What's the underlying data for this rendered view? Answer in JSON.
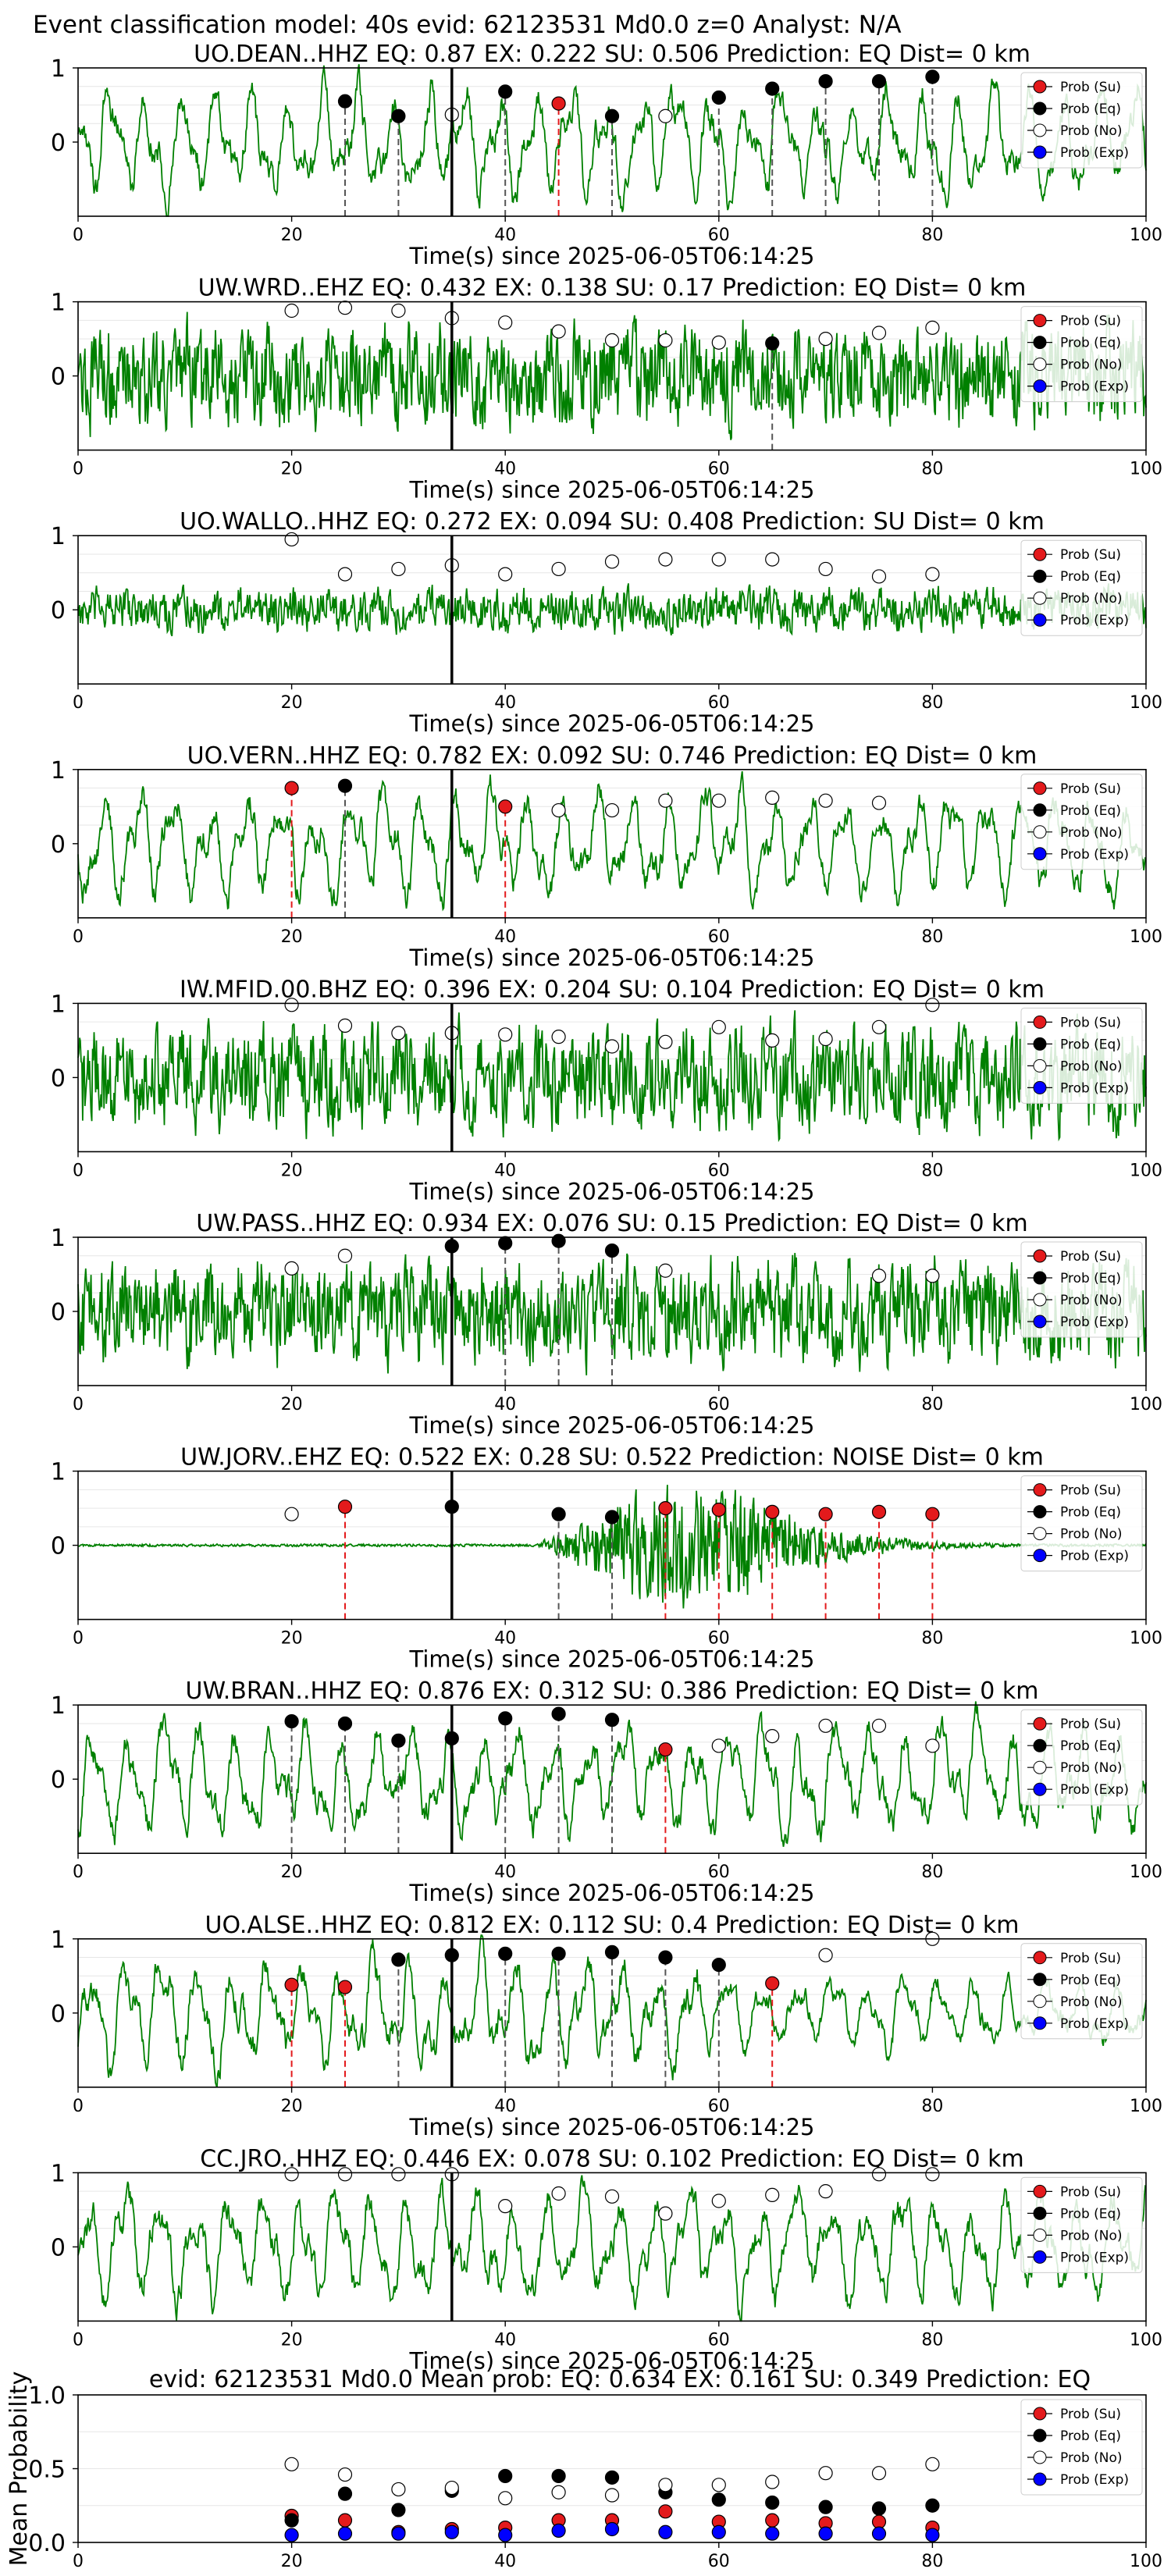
{
  "figure": {
    "title": "Event classification model: 40s evid: 62123531 Md0.0 z=0 Analyst: N/A",
    "xlabel": "Time(s) since 2025-06-05T06:14:25",
    "xlim": [
      0,
      100
    ],
    "xticks": [
      0,
      20,
      40,
      60,
      80,
      100
    ],
    "legend": [
      "Prob (Su)",
      "Prob (Eq)",
      "Prob (No)",
      "Prob (Exp)"
    ],
    "colors": {
      "su": "#e31a1c",
      "eq": "#000000",
      "no": "#ffffff",
      "exp": "#0000ff",
      "waveform": "#008000",
      "pick": "#000000"
    }
  },
  "chart_data": [
    {
      "type": "line",
      "title": "UO.DEAN..HHZ   EQ: 0.87   EX: 0.222   SU: 0.506   Prediction: EQ    Dist= 0 km",
      "ylim": [
        -1,
        1
      ],
      "yticks": [
        0,
        1
      ],
      "pick": 35,
      "style": "smooth",
      "envelope": "flat",
      "points": [
        [
          25,
          0.55,
          "eq"
        ],
        [
          30,
          0.35,
          "eq"
        ],
        [
          35,
          0.37,
          "no"
        ],
        [
          40,
          0.68,
          "eq"
        ],
        [
          45,
          0.52,
          "su"
        ],
        [
          50,
          0.35,
          "eq"
        ],
        [
          55,
          0.35,
          "no"
        ],
        [
          60,
          0.6,
          "eq"
        ],
        [
          65,
          0.72,
          "eq"
        ],
        [
          70,
          0.82,
          "eq"
        ],
        [
          75,
          0.82,
          "eq"
        ],
        [
          80,
          0.88,
          "eq"
        ]
      ]
    },
    {
      "type": "line",
      "title": "UW.WRD..EHZ   EQ: 0.432   EX: 0.138   SU: 0.17   Prediction: EQ    Dist= 0 km",
      "ylim": [
        -1,
        1
      ],
      "yticks": [
        0,
        1
      ],
      "pick": 35,
      "style": "noisy",
      "envelope": "flat",
      "points": [
        [
          20,
          0.88,
          "no"
        ],
        [
          25,
          0.92,
          "no"
        ],
        [
          30,
          0.88,
          "no"
        ],
        [
          35,
          0.78,
          "no"
        ],
        [
          40,
          0.72,
          "no"
        ],
        [
          45,
          0.6,
          "no"
        ],
        [
          50,
          0.48,
          "no"
        ],
        [
          55,
          0.48,
          "no"
        ],
        [
          60,
          0.45,
          "no"
        ],
        [
          65,
          0.44,
          "eq"
        ],
        [
          70,
          0.5,
          "no"
        ],
        [
          75,
          0.58,
          "no"
        ],
        [
          80,
          0.65,
          "no"
        ]
      ]
    },
    {
      "type": "line",
      "title": "UO.WALLO..HHZ   EQ: 0.272   EX: 0.094   SU: 0.408   Prediction: SU    Dist= 0 km",
      "ylim": [
        -1,
        1
      ],
      "yticks": [
        0,
        1
      ],
      "pick": 35,
      "style": "noisy",
      "envelope": "low",
      "points": [
        [
          20,
          0.95,
          "no"
        ],
        [
          25,
          0.48,
          "no"
        ],
        [
          30,
          0.55,
          "no"
        ],
        [
          35,
          0.6,
          "no"
        ],
        [
          40,
          0.48,
          "no"
        ],
        [
          45,
          0.55,
          "no"
        ],
        [
          50,
          0.65,
          "no"
        ],
        [
          55,
          0.68,
          "no"
        ],
        [
          60,
          0.68,
          "no"
        ],
        [
          65,
          0.68,
          "no"
        ],
        [
          70,
          0.55,
          "no"
        ],
        [
          75,
          0.45,
          "no"
        ],
        [
          80,
          0.48,
          "no"
        ]
      ]
    },
    {
      "type": "line",
      "title": "UO.VERN..HHZ   EQ: 0.782   EX: 0.092   SU: 0.746   Prediction: EQ    Dist= 0 km",
      "ylim": [
        -1,
        1
      ],
      "yticks": [
        0,
        1
      ],
      "pick": 35,
      "style": "smooth",
      "envelope": "flat",
      "points": [
        [
          20,
          0.75,
          "su"
        ],
        [
          25,
          0.78,
          "eq"
        ],
        [
          40,
          0.5,
          "su"
        ],
        [
          45,
          0.45,
          "no"
        ],
        [
          50,
          0.45,
          "no"
        ],
        [
          55,
          0.58,
          "no"
        ],
        [
          60,
          0.58,
          "no"
        ],
        [
          65,
          0.62,
          "no"
        ],
        [
          70,
          0.58,
          "no"
        ],
        [
          75,
          0.55,
          "no"
        ]
      ]
    },
    {
      "type": "line",
      "title": "IW.MFID.00.BHZ   EQ: 0.396   EX: 0.204   SU: 0.104   Prediction: EQ    Dist= 0 km",
      "ylim": [
        -1,
        1
      ],
      "yticks": [
        0,
        1
      ],
      "pick": 35,
      "style": "noisy",
      "envelope": "flat",
      "points": [
        [
          20,
          0.98,
          "no"
        ],
        [
          25,
          0.7,
          "no"
        ],
        [
          30,
          0.6,
          "no"
        ],
        [
          35,
          0.6,
          "no"
        ],
        [
          40,
          0.58,
          "no"
        ],
        [
          45,
          0.55,
          "no"
        ],
        [
          50,
          0.42,
          "no"
        ],
        [
          55,
          0.48,
          "no"
        ],
        [
          60,
          0.68,
          "no"
        ],
        [
          65,
          0.5,
          "no"
        ],
        [
          70,
          0.52,
          "no"
        ],
        [
          75,
          0.68,
          "no"
        ],
        [
          80,
          0.98,
          "no"
        ]
      ]
    },
    {
      "type": "line",
      "title": "UW.PASS..HHZ   EQ: 0.934   EX: 0.076   SU: 0.15   Prediction: EQ    Dist= 0 km",
      "ylim": [
        -1,
        1
      ],
      "yticks": [
        0,
        1
      ],
      "pick": 35,
      "style": "noisy",
      "envelope": "flat",
      "points": [
        [
          20,
          0.58,
          "no"
        ],
        [
          25,
          0.75,
          "no"
        ],
        [
          35,
          0.88,
          "eq"
        ],
        [
          40,
          0.92,
          "eq"
        ],
        [
          45,
          0.95,
          "eq"
        ],
        [
          50,
          0.82,
          "eq"
        ],
        [
          55,
          0.55,
          "no"
        ],
        [
          75,
          0.48,
          "no"
        ],
        [
          80,
          0.48,
          "no"
        ]
      ]
    },
    {
      "type": "line",
      "title": "UW.JORV..EHZ   EQ: 0.522   EX: 0.28   SU: 0.522   Prediction: NOISE    Dist= 0 km",
      "ylim": [
        -1,
        1
      ],
      "yticks": [
        0,
        1
      ],
      "pick": 35,
      "style": "burst",
      "envelope": "burst",
      "points": [
        [
          20,
          0.42,
          "no"
        ],
        [
          25,
          0.52,
          "su"
        ],
        [
          35,
          0.52,
          "eq"
        ],
        [
          45,
          0.42,
          "eq"
        ],
        [
          50,
          0.38,
          "eq"
        ],
        [
          55,
          0.5,
          "su"
        ],
        [
          60,
          0.48,
          "su"
        ],
        [
          65,
          0.45,
          "su"
        ],
        [
          70,
          0.42,
          "su"
        ],
        [
          75,
          0.45,
          "su"
        ],
        [
          80,
          0.42,
          "su"
        ]
      ]
    },
    {
      "type": "line",
      "title": "UW.BRAN..HHZ   EQ: 0.876   EX: 0.312   SU: 0.386   Prediction: EQ    Dist= 0 km",
      "ylim": [
        -1,
        1
      ],
      "yticks": [
        0,
        1
      ],
      "pick": 35,
      "style": "smooth",
      "envelope": "flat",
      "points": [
        [
          20,
          0.78,
          "eq"
        ],
        [
          25,
          0.75,
          "eq"
        ],
        [
          30,
          0.52,
          "eq"
        ],
        [
          35,
          0.55,
          "eq"
        ],
        [
          40,
          0.82,
          "eq"
        ],
        [
          45,
          0.88,
          "eq"
        ],
        [
          50,
          0.8,
          "eq"
        ],
        [
          55,
          0.4,
          "su"
        ],
        [
          60,
          0.45,
          "no"
        ],
        [
          65,
          0.58,
          "no"
        ],
        [
          70,
          0.72,
          "no"
        ],
        [
          75,
          0.72,
          "no"
        ],
        [
          80,
          0.45,
          "no"
        ]
      ]
    },
    {
      "type": "line",
      "title": "UO.ALSE..HHZ   EQ: 0.812   EX: 0.112   SU: 0.4   Prediction: EQ    Dist= 0 km",
      "ylim": [
        -1,
        1
      ],
      "yticks": [
        0,
        1
      ],
      "pick": 35,
      "style": "smooth",
      "envelope": "decay",
      "points": [
        [
          20,
          0.38,
          "su"
        ],
        [
          25,
          0.35,
          "su"
        ],
        [
          30,
          0.72,
          "eq"
        ],
        [
          35,
          0.78,
          "eq"
        ],
        [
          40,
          0.8,
          "eq"
        ],
        [
          45,
          0.8,
          "eq"
        ],
        [
          50,
          0.82,
          "eq"
        ],
        [
          55,
          0.75,
          "eq"
        ],
        [
          60,
          0.65,
          "eq"
        ],
        [
          65,
          0.4,
          "su"
        ],
        [
          70,
          0.78,
          "no"
        ],
        [
          80,
          1.0,
          "no"
        ]
      ]
    },
    {
      "type": "line",
      "title": "CC.JRO..HHZ   EQ: 0.446   EX: 0.078   SU: 0.102   Prediction: EQ    Dist= 0 km",
      "ylim": [
        -1,
        1
      ],
      "yticks": [
        0,
        1
      ],
      "pick": 35,
      "style": "smooth",
      "envelope": "flat",
      "points": [
        [
          20,
          0.98,
          "no"
        ],
        [
          25,
          0.98,
          "no"
        ],
        [
          30,
          0.98,
          "no"
        ],
        [
          35,
          0.98,
          "no"
        ],
        [
          40,
          0.55,
          "no"
        ],
        [
          45,
          0.72,
          "no"
        ],
        [
          50,
          0.68,
          "no"
        ],
        [
          55,
          0.45,
          "no"
        ],
        [
          60,
          0.62,
          "no"
        ],
        [
          65,
          0.7,
          "no"
        ],
        [
          70,
          0.75,
          "no"
        ],
        [
          75,
          0.98,
          "no"
        ],
        [
          80,
          0.98,
          "no"
        ]
      ]
    },
    {
      "type": "scatter",
      "title": "evid: 62123531   Md0.0   Mean prob:   EQ: 0.634   EX: 0.161   SU: 0.349   Prediction: EQ",
      "ylabel": "Mean Probability",
      "ylim": [
        0,
        1
      ],
      "yticks": [
        0.0,
        0.5,
        1.0
      ],
      "x": [
        20,
        25,
        30,
        35,
        40,
        45,
        50,
        55,
        60,
        65,
        70,
        75,
        80
      ],
      "series": [
        {
          "name": "Prob (Su)",
          "values": [
            0.18,
            0.15,
            0.07,
            0.09,
            0.1,
            0.15,
            0.15,
            0.21,
            0.14,
            0.15,
            0.13,
            0.14,
            0.1
          ]
        },
        {
          "name": "Prob (Eq)",
          "values": [
            0.15,
            0.33,
            0.22,
            0.35,
            0.45,
            0.45,
            0.44,
            0.34,
            0.29,
            0.27,
            0.24,
            0.23,
            0.25
          ]
        },
        {
          "name": "Prob (No)",
          "values": [
            0.53,
            0.46,
            0.36,
            0.37,
            0.3,
            0.34,
            0.32,
            0.39,
            0.39,
            0.41,
            0.47,
            0.47,
            0.53
          ]
        },
        {
          "name": "Prob (Exp)",
          "values": [
            0.05,
            0.06,
            0.06,
            0.07,
            0.05,
            0.08,
            0.09,
            0.07,
            0.07,
            0.06,
            0.06,
            0.06,
            0.05
          ]
        }
      ]
    }
  ]
}
